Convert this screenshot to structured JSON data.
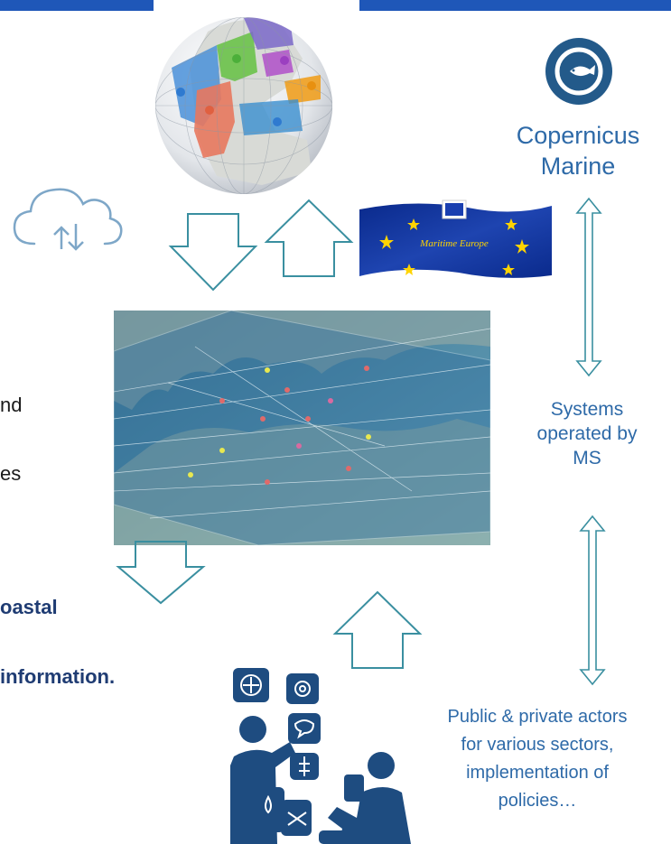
{
  "copernicus": {
    "line1": "Copernicus",
    "line2": "Marine",
    "icon": "fish-icon"
  },
  "systems": {
    "line1": "Systems",
    "line2": "operated by",
    "line3": "MS"
  },
  "actors": {
    "line1": "Public & private actors",
    "line2": "for various sectors,",
    "line3": "implementation of",
    "line4": "policies…"
  },
  "left_fragments": {
    "nd": "nd",
    "es": "es",
    "oastal": "oastal",
    "information": "information."
  },
  "flag": {
    "label": "Maritime Europe"
  },
  "colors": {
    "topbar": "#1f57b8",
    "accent_text": "#2e6aa8",
    "arrow_outline": "#3a8fa0",
    "bold_text": "#1f3c73",
    "icon_blue": "#1e4c80"
  }
}
